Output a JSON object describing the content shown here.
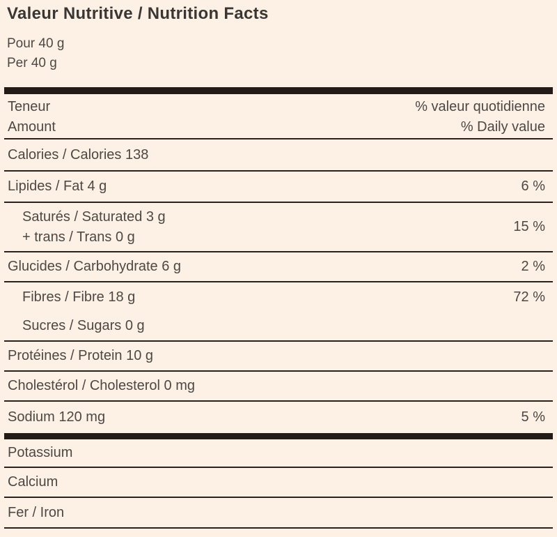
{
  "label": {
    "title": "Valeur Nutritive / Nutrition Facts",
    "serving_fr": "Pour 40 g",
    "serving_en": "Per 40 g",
    "header": {
      "amount_fr": "Teneur",
      "amount_en": "Amount",
      "dv_fr": "% valeur quotidienne",
      "dv_en": "% Daily value"
    },
    "rows": {
      "calories": {
        "text": "Calories / Calories 138",
        "dv": ""
      },
      "fat": {
        "text": "Lipides / Fat 4 g",
        "dv": "6 %"
      },
      "saturated": {
        "line1": "Saturés / Saturated 3 g",
        "line2": "+ trans / Trans 0 g",
        "dv": "15 %"
      },
      "carbohydrate": {
        "text": "Glucides / Carbohydrate 6 g",
        "dv": "2 %"
      },
      "fibre": {
        "text": "Fibres / Fibre 18 g",
        "dv": "72 %"
      },
      "sugars": {
        "text": "Sucres / Sugars 0 g",
        "dv": ""
      },
      "protein": {
        "text": "Protéines / Protein 10 g",
        "dv": ""
      },
      "cholesterol": {
        "text": "Cholestérol / Cholesterol 0 mg",
        "dv": ""
      },
      "sodium": {
        "text": "Sodium 120 mg",
        "dv": "5 %"
      },
      "potassium": {
        "text": "Potassium",
        "dv": ""
      },
      "calcium": {
        "text": "Calcium",
        "dv": ""
      },
      "iron": {
        "text": "Fer / Iron",
        "dv": ""
      }
    },
    "colors": {
      "background": "#fdf1e5",
      "rule": "#2a211c",
      "thick_bar": "#221b17",
      "title_text": "#3a3633",
      "body_text": "#4d4844"
    }
  }
}
